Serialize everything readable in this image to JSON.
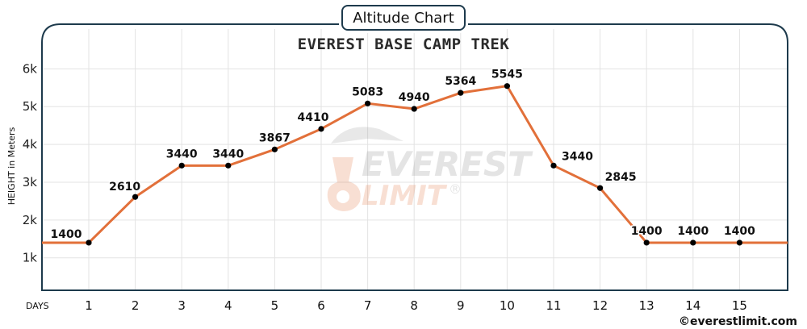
{
  "header": {
    "tab_title": "Altitude Chart",
    "chart_title": "EVEREST BASE CAMP TREK"
  },
  "watermark": {
    "line1": "EVEREST",
    "line2": "LIMIT",
    "mark": "®"
  },
  "footer": {
    "credit": "©everestlimit.com"
  },
  "colors": {
    "line": "#e2703a",
    "point": "#000000",
    "frame": "#1d3a4c",
    "grid": "#e3e3e3"
  },
  "chart_data": {
    "type": "line",
    "title": "EVEREST BASE CAMP TREK",
    "xlabel": "DAYS",
    "ylabel": "HEIGHT in Meters",
    "x": [
      1,
      2,
      3,
      4,
      5,
      6,
      7,
      8,
      9,
      10,
      11,
      12,
      13,
      14,
      15
    ],
    "values": [
      1400,
      2610,
      3440,
      3440,
      3867,
      4410,
      5083,
      4940,
      5364,
      5545,
      3440,
      2845,
      1400,
      1400,
      1400
    ],
    "data_labels": [
      "1400",
      "2610",
      "3440",
      "3440",
      "3867",
      "4410",
      "5083",
      "4940",
      "5364",
      "5545",
      "3440",
      "2845",
      "1400",
      "1400",
      "1400"
    ],
    "y_ticks": [
      {
        "value": 1000,
        "label": "1k"
      },
      {
        "value": 2000,
        "label": "2k"
      },
      {
        "value": 3000,
        "label": "3k"
      },
      {
        "value": 4000,
        "label": "4k"
      },
      {
        "value": 5000,
        "label": "5k"
      },
      {
        "value": 6000,
        "label": "6k"
      }
    ],
    "x_ticks": [
      "1",
      "2",
      "3",
      "4",
      "5",
      "6",
      "7",
      "8",
      "9",
      "10",
      "11",
      "12",
      "13",
      "14",
      "15"
    ],
    "grid": true
  }
}
